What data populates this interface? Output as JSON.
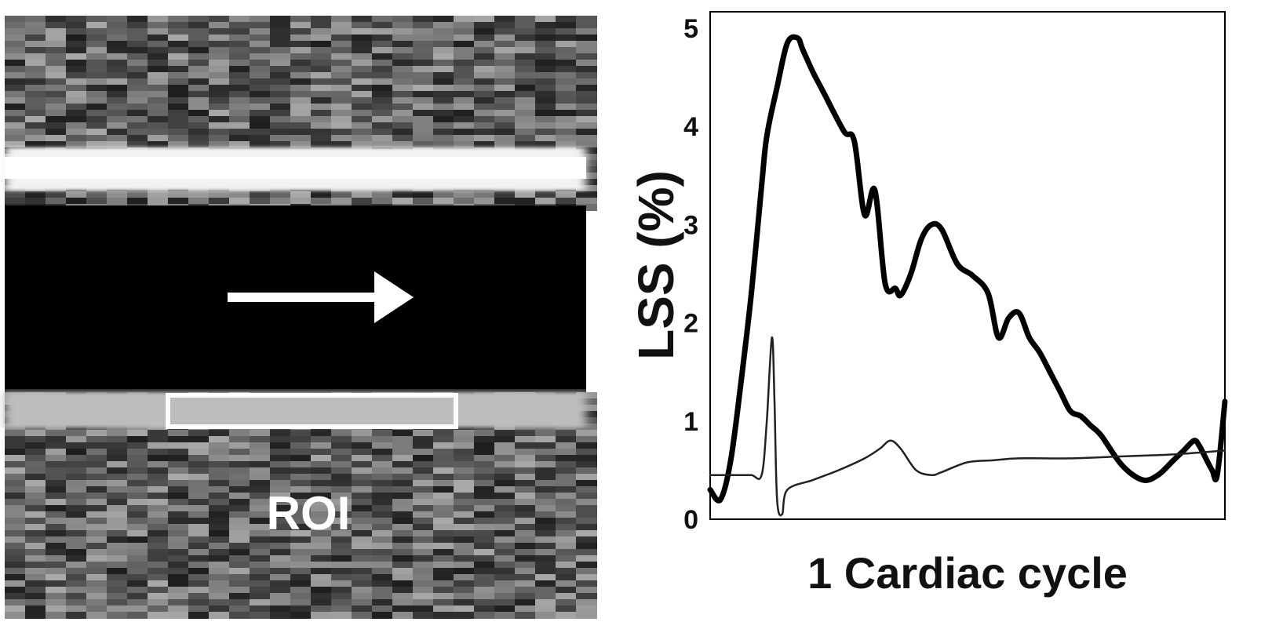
{
  "ultrasound": {
    "roi_label": "ROI",
    "flow_arrow_icon": "arrow-right-icon"
  },
  "chart_data": {
    "type": "line",
    "title": "",
    "xlabel": "1 Cardiac cycle",
    "ylabel": "LSS (%)",
    "ylim": [
      0,
      5
    ],
    "xlim": [
      0,
      1
    ],
    "yticks": [
      "0",
      "1",
      "2",
      "3",
      "4",
      "5"
    ],
    "grid": false,
    "series": [
      {
        "style": "thick",
        "color": "#000000",
        "x": [
          0.0,
          0.02,
          0.04,
          0.06,
          0.08,
          0.1,
          0.11,
          0.13,
          0.15,
          0.17,
          0.18,
          0.2,
          0.22,
          0.26,
          0.28,
          0.3,
          0.32,
          0.34,
          0.36,
          0.37,
          0.39,
          0.41,
          0.43,
          0.45,
          0.48,
          0.51,
          0.54,
          0.56,
          0.58,
          0.6,
          0.62,
          0.64,
          0.66,
          0.68,
          0.7,
          0.72,
          0.74,
          0.76,
          0.8,
          0.84,
          0.87,
          0.9,
          0.92,
          0.94,
          0.95,
          0.96,
          0.975,
          0.985,
          1.0
        ],
        "y": [
          0.3,
          0.2,
          0.6,
          1.4,
          2.3,
          3.4,
          3.9,
          4.4,
          4.85,
          4.9,
          4.78,
          4.55,
          4.35,
          3.95,
          3.85,
          3.1,
          3.35,
          2.4,
          2.35,
          2.28,
          2.5,
          2.85,
          3.0,
          2.95,
          2.6,
          2.48,
          2.3,
          1.85,
          2.05,
          2.1,
          1.85,
          1.7,
          1.5,
          1.3,
          1.1,
          1.05,
          0.95,
          0.85,
          0.55,
          0.4,
          0.45,
          0.6,
          0.7,
          0.8,
          0.75,
          0.65,
          0.5,
          0.45,
          1.2
        ]
      },
      {
        "style": "thin",
        "color": "#222222",
        "x": [
          0.0,
          0.05,
          0.08,
          0.1,
          0.11,
          0.12,
          0.125,
          0.13,
          0.14,
          0.15,
          0.2,
          0.25,
          0.3,
          0.33,
          0.35,
          0.37,
          0.4,
          0.43,
          0.45,
          0.5,
          0.55,
          0.6,
          0.7,
          0.8,
          0.9,
          1.0
        ],
        "y": [
          0.45,
          0.45,
          0.45,
          0.45,
          1.0,
          1.85,
          1.2,
          0.2,
          0.05,
          0.3,
          0.4,
          0.5,
          0.62,
          0.72,
          0.8,
          0.72,
          0.5,
          0.45,
          0.48,
          0.58,
          0.6,
          0.62,
          0.62,
          0.64,
          0.66,
          0.7
        ]
      }
    ]
  }
}
